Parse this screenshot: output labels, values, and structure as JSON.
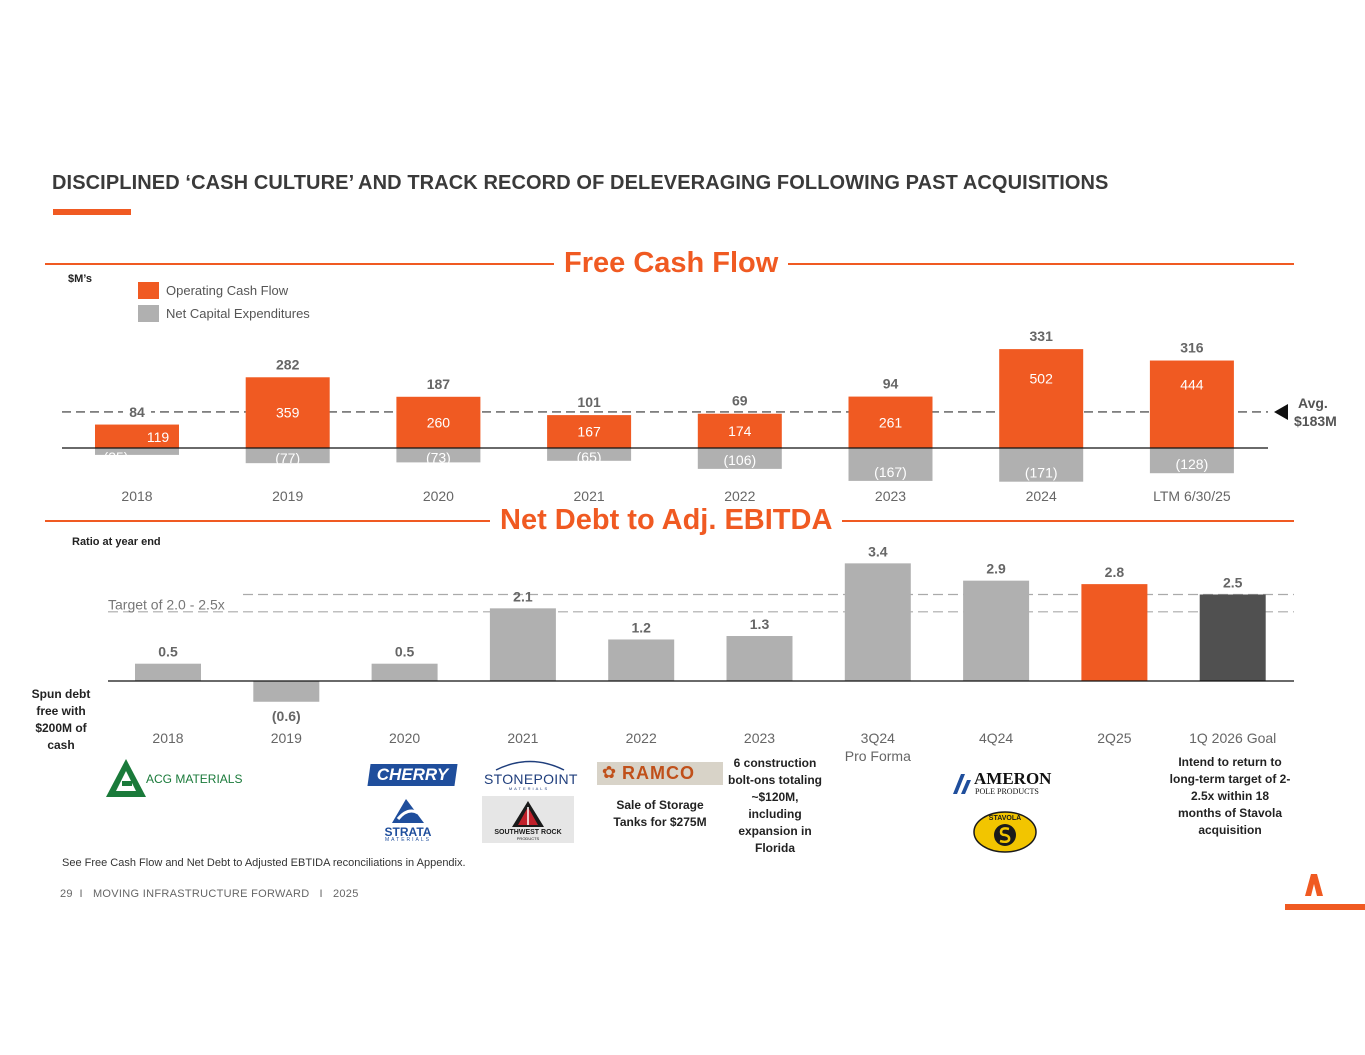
{
  "page": {
    "title": "DISCIPLINED ‘CASH CULTURE’ AND TRACK RECORD OF DELEVERAGING FOLLOWING PAST ACQUISITIONS",
    "footnote": "See Free Cash Flow and Net Debt to Adjusted EBTIDA reconciliations in Appendix.",
    "footer": "29  I   MOVING INFRASTRUCTURE FORWARD   I   2025",
    "accent_color": "#f05a22",
    "gray_color": "#b0b0b0",
    "dark_color": "#505050"
  },
  "chart_data": [
    {
      "type": "bar",
      "title": "Free Cash Flow",
      "units_label": "$M’s",
      "categories": [
        "2018",
        "2019",
        "2020",
        "2021",
        "2022",
        "2023",
        "2024",
        "LTM 6/30/25"
      ],
      "series": [
        {
          "name": "Operating Cash Flow",
          "values": [
            119,
            359,
            260,
            167,
            174,
            261,
            502,
            444
          ]
        },
        {
          "name": "Net Capital Expenditures",
          "values": [
            -35,
            -77,
            -73,
            -65,
            -106,
            -167,
            -171,
            -128
          ]
        }
      ],
      "free_cash_flow": [
        84,
        282,
        187,
        101,
        69,
        94,
        331,
        316
      ],
      "average": {
        "value": 183,
        "label_line1": "Avg.",
        "label_line2": "$183M"
      }
    },
    {
      "type": "bar",
      "title": "Net Debt to Adj. EBITDA",
      "units_label": "Ratio at year end",
      "categories": [
        "2018",
        "2019",
        "2020",
        "2021",
        "2022",
        "2023",
        "3Q24",
        "4Q24",
        "2Q25",
        "1Q 2026 Goal"
      ],
      "category_sublabels": [
        "",
        "",
        "",
        "",
        "",
        "",
        "Pro Forma",
        "",
        "",
        ""
      ],
      "values": [
        0.5,
        -0.6,
        0.5,
        2.1,
        1.2,
        1.3,
        3.4,
        2.9,
        2.8,
        2.5
      ],
      "value_labels": [
        "0.5",
        "(0.6)",
        "0.5",
        "2.1",
        "1.2",
        "1.3",
        "3.4",
        "2.9",
        "2.8",
        "2.5"
      ],
      "bar_colors": [
        "#b0b0b0",
        "#b0b0b0",
        "#b0b0b0",
        "#b0b0b0",
        "#b0b0b0",
        "#b0b0b0",
        "#b0b0b0",
        "#b0b0b0",
        "#f05a22",
        "#505050"
      ],
      "target": {
        "label": "Target of 2.0 - 2.5x",
        "low": 2.0,
        "high": 2.5
      }
    }
  ],
  "notes": {
    "spun": "Spun debt free with $200M of cash",
    "sale": "Sale of Storage Tanks for $275M",
    "bolt": "6 construction bolt-ons totaling ~$120M, including expansion in Florida",
    "goal": "Intend to return to long-term target of 2-2.5x within 18 months of Stavola acquisition"
  },
  "logos": {
    "acg": "ACG MATERIALS",
    "cherry": "CHERRY",
    "strata": "STRATA",
    "strata_sub": "MATERIALS",
    "stonepoint": "STONEPOINT",
    "stonepoint_sub": "MATERIALS",
    "swrock": "SOUTHWEST ROCK",
    "swrock_sub": "PRODUCTS",
    "ramco": "RAMCO",
    "ameron": "AMERON",
    "ameron_sub": "POLE PRODUCTS",
    "stavola": "STAVOLA"
  }
}
